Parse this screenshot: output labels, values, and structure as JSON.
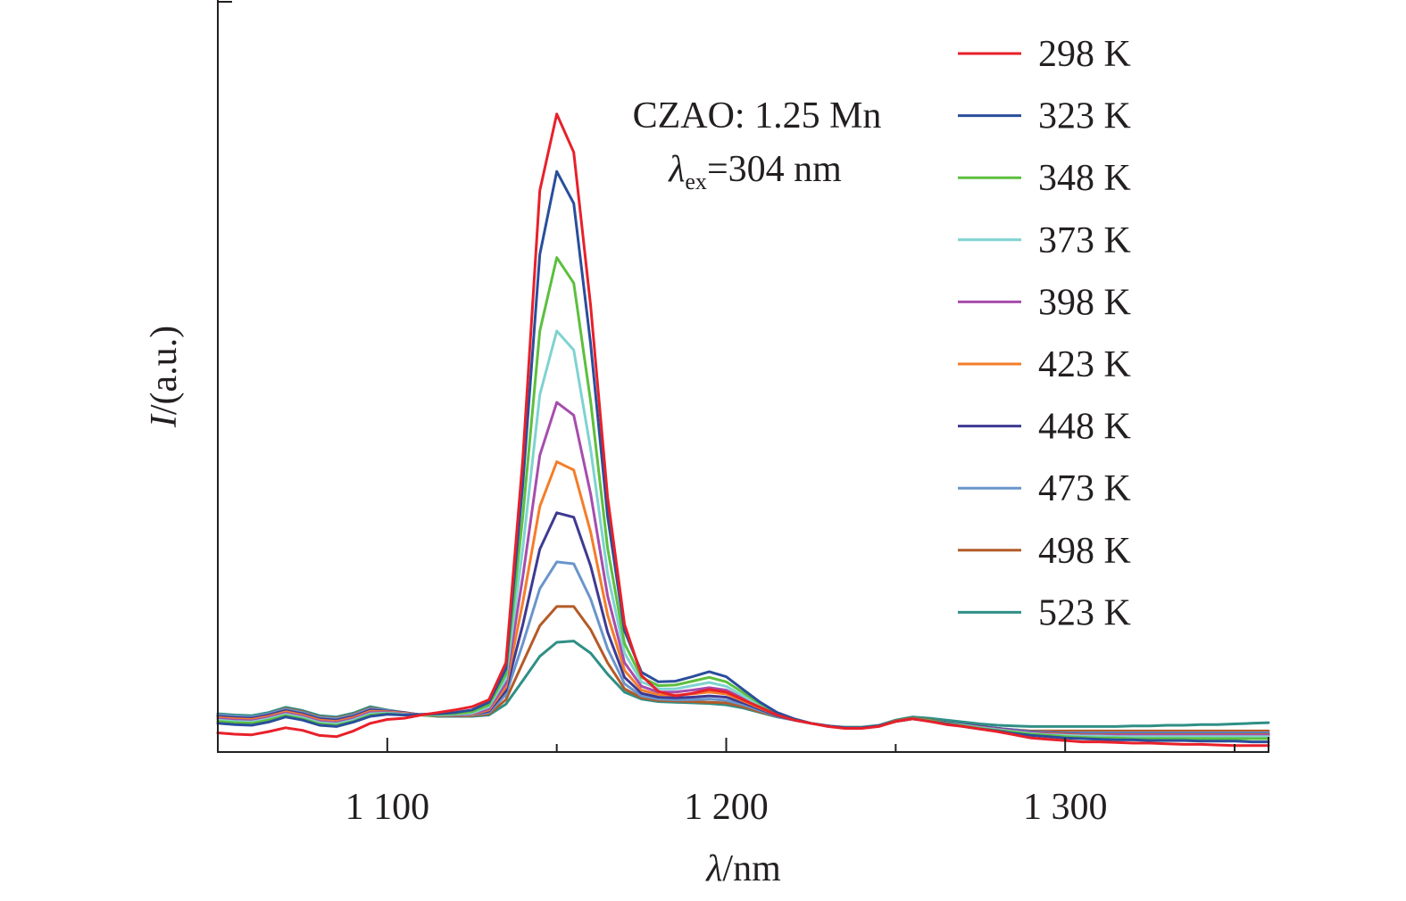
{
  "chart_data": {
    "type": "line",
    "title": "",
    "xlabel_symbol": "λ",
    "xlabel_unit": "/nm",
    "ylabel_symbol": "I",
    "ylabel_unit": "/(a.u.)",
    "xlim": [
      1050,
      1360
    ],
    "ylim": [
      0,
      1.12
    ],
    "x_ticks": [
      1100,
      1200,
      1300
    ],
    "x_tick_labels": [
      "1 100",
      "1 200",
      "1 300"
    ],
    "x_minor_ticks": [
      1150,
      1250,
      1350
    ],
    "y_ticks_shown": false,
    "grid": false,
    "legend_position": "top-right",
    "annotation": {
      "line1": "CZAO: 1.25 Mn",
      "line2_symbol": "λ",
      "line2_subscript": "ex",
      "line2_rest": "=304 nm"
    },
    "x": [
      1050,
      1055,
      1060,
      1065,
      1070,
      1075,
      1080,
      1085,
      1090,
      1095,
      1100,
      1105,
      1110,
      1115,
      1120,
      1125,
      1130,
      1135,
      1140,
      1145,
      1150,
      1155,
      1160,
      1165,
      1170,
      1175,
      1180,
      1185,
      1190,
      1195,
      1200,
      1205,
      1210,
      1215,
      1220,
      1225,
      1230,
      1235,
      1240,
      1245,
      1250,
      1255,
      1260,
      1265,
      1270,
      1275,
      1280,
      1285,
      1290,
      1295,
      1300,
      1305,
      1310,
      1315,
      1320,
      1325,
      1330,
      1335,
      1340,
      1345,
      1350,
      1355,
      1360
    ],
    "series": [
      {
        "name": "298 K",
        "color": "#e8202a",
        "values": [
          0.03,
          0.028,
          0.027,
          0.032,
          0.038,
          0.034,
          0.026,
          0.024,
          0.033,
          0.045,
          0.051,
          0.053,
          0.058,
          0.062,
          0.066,
          0.071,
          0.082,
          0.14,
          0.46,
          0.88,
          1.0,
          0.94,
          0.7,
          0.4,
          0.2,
          0.12,
          0.095,
          0.088,
          0.092,
          0.098,
          0.094,
          0.082,
          0.07,
          0.058,
          0.05,
          0.045,
          0.04,
          0.037,
          0.037,
          0.04,
          0.048,
          0.052,
          0.048,
          0.043,
          0.04,
          0.036,
          0.032,
          0.027,
          0.022,
          0.02,
          0.018,
          0.016,
          0.016,
          0.015,
          0.014,
          0.014,
          0.013,
          0.012,
          0.012,
          0.011,
          0.01,
          0.01,
          0.01
        ]
      },
      {
        "name": "323 K",
        "color": "#2a4e9b",
        "values": [
          0.045,
          0.043,
          0.042,
          0.047,
          0.055,
          0.05,
          0.042,
          0.04,
          0.047,
          0.056,
          0.059,
          0.058,
          0.059,
          0.06,
          0.062,
          0.066,
          0.078,
          0.13,
          0.42,
          0.78,
          0.91,
          0.86,
          0.64,
          0.37,
          0.19,
          0.125,
          0.11,
          0.111,
          0.118,
          0.126,
          0.118,
          0.098,
          0.078,
          0.062,
          0.052,
          0.045,
          0.041,
          0.038,
          0.038,
          0.041,
          0.048,
          0.052,
          0.048,
          0.044,
          0.04,
          0.036,
          0.033,
          0.029,
          0.026,
          0.024,
          0.022,
          0.021,
          0.02,
          0.019,
          0.019,
          0.018,
          0.018,
          0.018,
          0.017,
          0.017,
          0.017,
          0.016,
          0.016
        ]
      },
      {
        "name": "348 K",
        "color": "#5cbf3e",
        "values": [
          0.048,
          0.046,
          0.045,
          0.05,
          0.057,
          0.052,
          0.044,
          0.042,
          0.048,
          0.058,
          0.06,
          0.058,
          0.058,
          0.059,
          0.06,
          0.063,
          0.074,
          0.122,
          0.37,
          0.66,
          0.775,
          0.735,
          0.55,
          0.32,
          0.17,
          0.117,
          0.104,
          0.105,
          0.111,
          0.117,
          0.11,
          0.093,
          0.076,
          0.061,
          0.052,
          0.045,
          0.041,
          0.038,
          0.038,
          0.041,
          0.048,
          0.052,
          0.049,
          0.045,
          0.041,
          0.037,
          0.034,
          0.031,
          0.028,
          0.026,
          0.024,
          0.023,
          0.022,
          0.022,
          0.021,
          0.021,
          0.021,
          0.021,
          0.021,
          0.021,
          0.021,
          0.021,
          0.021
        ]
      },
      {
        "name": "373 K",
        "color": "#7fd3d0",
        "values": [
          0.05,
          0.048,
          0.047,
          0.052,
          0.059,
          0.054,
          0.046,
          0.044,
          0.05,
          0.06,
          0.061,
          0.059,
          0.058,
          0.058,
          0.059,
          0.061,
          0.071,
          0.115,
          0.32,
          0.56,
          0.66,
          0.63,
          0.475,
          0.28,
          0.155,
          0.11,
          0.099,
          0.099,
          0.104,
          0.109,
          0.103,
          0.088,
          0.073,
          0.06,
          0.051,
          0.045,
          0.041,
          0.038,
          0.038,
          0.041,
          0.048,
          0.052,
          0.049,
          0.045,
          0.042,
          0.038,
          0.035,
          0.032,
          0.029,
          0.027,
          0.026,
          0.025,
          0.025,
          0.024,
          0.024,
          0.024,
          0.024,
          0.024,
          0.024,
          0.024,
          0.024,
          0.024,
          0.024
        ]
      },
      {
        "name": "398 K",
        "color": "#a64dad",
        "values": [
          0.052,
          0.05,
          0.049,
          0.054,
          0.061,
          0.056,
          0.048,
          0.046,
          0.052,
          0.062,
          0.062,
          0.06,
          0.058,
          0.058,
          0.058,
          0.06,
          0.068,
          0.108,
          0.275,
          0.465,
          0.548,
          0.528,
          0.405,
          0.245,
          0.14,
          0.103,
          0.094,
          0.094,
          0.097,
          0.101,
          0.097,
          0.084,
          0.071,
          0.059,
          0.051,
          0.045,
          0.041,
          0.038,
          0.038,
          0.041,
          0.048,
          0.052,
          0.049,
          0.045,
          0.042,
          0.039,
          0.036,
          0.033,
          0.03,
          0.028,
          0.027,
          0.026,
          0.026,
          0.026,
          0.026,
          0.026,
          0.026,
          0.026,
          0.026,
          0.026,
          0.026,
          0.026,
          0.026
        ]
      },
      {
        "name": "423 K",
        "color": "#f47d2a",
        "values": [
          0.054,
          0.052,
          0.051,
          0.056,
          0.063,
          0.058,
          0.05,
          0.048,
          0.054,
          0.064,
          0.063,
          0.061,
          0.058,
          0.058,
          0.058,
          0.059,
          0.066,
          0.102,
          0.235,
          0.385,
          0.455,
          0.442,
          0.345,
          0.215,
          0.128,
          0.097,
          0.09,
          0.089,
          0.091,
          0.094,
          0.091,
          0.08,
          0.069,
          0.058,
          0.051,
          0.045,
          0.041,
          0.038,
          0.038,
          0.041,
          0.048,
          0.052,
          0.049,
          0.045,
          0.042,
          0.039,
          0.036,
          0.033,
          0.03,
          0.029,
          0.028,
          0.027,
          0.027,
          0.027,
          0.027,
          0.027,
          0.027,
          0.027,
          0.027,
          0.027,
          0.027,
          0.027,
          0.027
        ]
      },
      {
        "name": "448 K",
        "color": "#3e3a92",
        "values": [
          0.056,
          0.054,
          0.053,
          0.058,
          0.065,
          0.06,
          0.052,
          0.05,
          0.056,
          0.066,
          0.064,
          0.062,
          0.058,
          0.058,
          0.058,
          0.059,
          0.064,
          0.096,
          0.2,
          0.318,
          0.375,
          0.368,
          0.292,
          0.188,
          0.117,
          0.092,
          0.086,
          0.085,
          0.086,
          0.088,
          0.086,
          0.077,
          0.067,
          0.057,
          0.05,
          0.045,
          0.041,
          0.038,
          0.038,
          0.041,
          0.048,
          0.052,
          0.049,
          0.046,
          0.043,
          0.04,
          0.037,
          0.034,
          0.031,
          0.03,
          0.029,
          0.028,
          0.028,
          0.028,
          0.028,
          0.028,
          0.028,
          0.028,
          0.028,
          0.028,
          0.028,
          0.028,
          0.028
        ]
      },
      {
        "name": "473 K",
        "color": "#6a95cc",
        "values": [
          0.058,
          0.056,
          0.055,
          0.06,
          0.067,
          0.062,
          0.054,
          0.052,
          0.058,
          0.068,
          0.065,
          0.062,
          0.058,
          0.058,
          0.058,
          0.058,
          0.062,
          0.09,
          0.17,
          0.256,
          0.298,
          0.295,
          0.24,
          0.162,
          0.107,
          0.088,
          0.083,
          0.082,
          0.082,
          0.083,
          0.081,
          0.074,
          0.065,
          0.056,
          0.05,
          0.045,
          0.041,
          0.038,
          0.038,
          0.041,
          0.048,
          0.052,
          0.049,
          0.046,
          0.043,
          0.04,
          0.037,
          0.035,
          0.032,
          0.031,
          0.03,
          0.03,
          0.03,
          0.03,
          0.03,
          0.03,
          0.03,
          0.03,
          0.03,
          0.03,
          0.03,
          0.03,
          0.03
        ]
      },
      {
        "name": "498 K",
        "color": "#b35b28",
        "values": [
          0.058,
          0.056,
          0.055,
          0.06,
          0.068,
          0.063,
          0.055,
          0.053,
          0.059,
          0.069,
          0.065,
          0.062,
          0.058,
          0.057,
          0.057,
          0.057,
          0.06,
          0.082,
          0.14,
          0.198,
          0.228,
          0.228,
          0.192,
          0.14,
          0.099,
          0.085,
          0.081,
          0.08,
          0.079,
          0.078,
          0.077,
          0.071,
          0.063,
          0.056,
          0.05,
          0.045,
          0.041,
          0.038,
          0.038,
          0.041,
          0.049,
          0.053,
          0.05,
          0.046,
          0.043,
          0.04,
          0.037,
          0.035,
          0.033,
          0.033,
          0.033,
          0.033,
          0.033,
          0.033,
          0.033,
          0.033,
          0.033,
          0.033,
          0.033,
          0.033,
          0.033,
          0.033,
          0.033
        ]
      },
      {
        "name": "523 K",
        "color": "#2f8f86",
        "values": [
          0.06,
          0.058,
          0.057,
          0.062,
          0.07,
          0.065,
          0.057,
          0.055,
          0.061,
          0.071,
          0.066,
          0.062,
          0.058,
          0.056,
          0.056,
          0.056,
          0.058,
          0.075,
          0.112,
          0.15,
          0.172,
          0.174,
          0.155,
          0.122,
          0.094,
          0.083,
          0.079,
          0.078,
          0.077,
          0.076,
          0.074,
          0.069,
          0.062,
          0.055,
          0.05,
          0.045,
          0.041,
          0.039,
          0.039,
          0.042,
          0.05,
          0.055,
          0.053,
          0.05,
          0.047,
          0.044,
          0.042,
          0.041,
          0.04,
          0.04,
          0.04,
          0.04,
          0.04,
          0.04,
          0.041,
          0.041,
          0.042,
          0.042,
          0.043,
          0.043,
          0.044,
          0.045,
          0.046
        ]
      }
    ]
  }
}
